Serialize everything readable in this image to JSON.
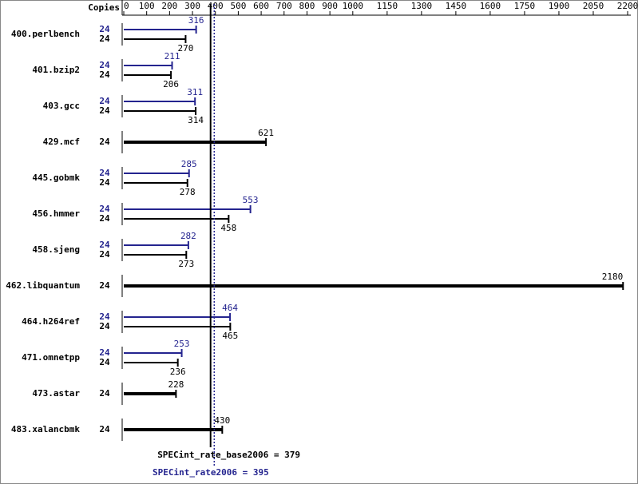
{
  "chart_data": {
    "type": "bar",
    "orientation": "horizontal",
    "copies_label": "Copies",
    "categories": [
      "400.perlbench",
      "401.bzip2",
      "403.gcc",
      "429.mcf",
      "445.gobmk",
      "456.hmmer",
      "458.sjeng",
      "462.libquantum",
      "464.h264ref",
      "471.omnetpp",
      "473.astar",
      "483.xalancbmk"
    ],
    "series": [
      {
        "color": "#24248f",
        "copies": [
          24,
          24,
          24,
          null,
          24,
          24,
          24,
          null,
          24,
          24,
          null,
          null
        ],
        "values": [
          316,
          211,
          311,
          null,
          285,
          553,
          282,
          null,
          464,
          253,
          null,
          null
        ]
      },
      {
        "color": "#000000",
        "copies": [
          24,
          24,
          24,
          24,
          24,
          24,
          24,
          24,
          24,
          24,
          24,
          24
        ],
        "values": [
          270,
          206,
          314,
          621,
          278,
          458,
          273,
          2180,
          465,
          236,
          228,
          430
        ]
      }
    ],
    "xlim": [
      0,
      2200
    ],
    "xticks": [
      0,
      100,
      200,
      300,
      400,
      500,
      600,
      700,
      800,
      900,
      1000,
      1150,
      1300,
      1450,
      1600,
      1750,
      1900,
      2050,
      2200
    ],
    "reference_lines": [
      {
        "label": "SPECint_rate_base2006 = 379",
        "value": 379,
        "color": "#000000",
        "style": "solid"
      },
      {
        "label": "SPECint_rate2006 = 395",
        "value": 395,
        "color": "#24248f",
        "style": "dotted"
      }
    ]
  }
}
